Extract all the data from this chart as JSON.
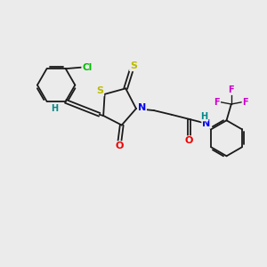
{
  "background_color": "#ebebeb",
  "bond_color": "#1a1a1a",
  "atom_colors": {
    "Cl": "#00bb00",
    "S": "#bbbb00",
    "N": "#0000ee",
    "O": "#ee0000",
    "H": "#008888",
    "F": "#cc00cc",
    "C": "#1a1a1a"
  },
  "figsize": [
    3.0,
    3.0
  ],
  "dpi": 100
}
